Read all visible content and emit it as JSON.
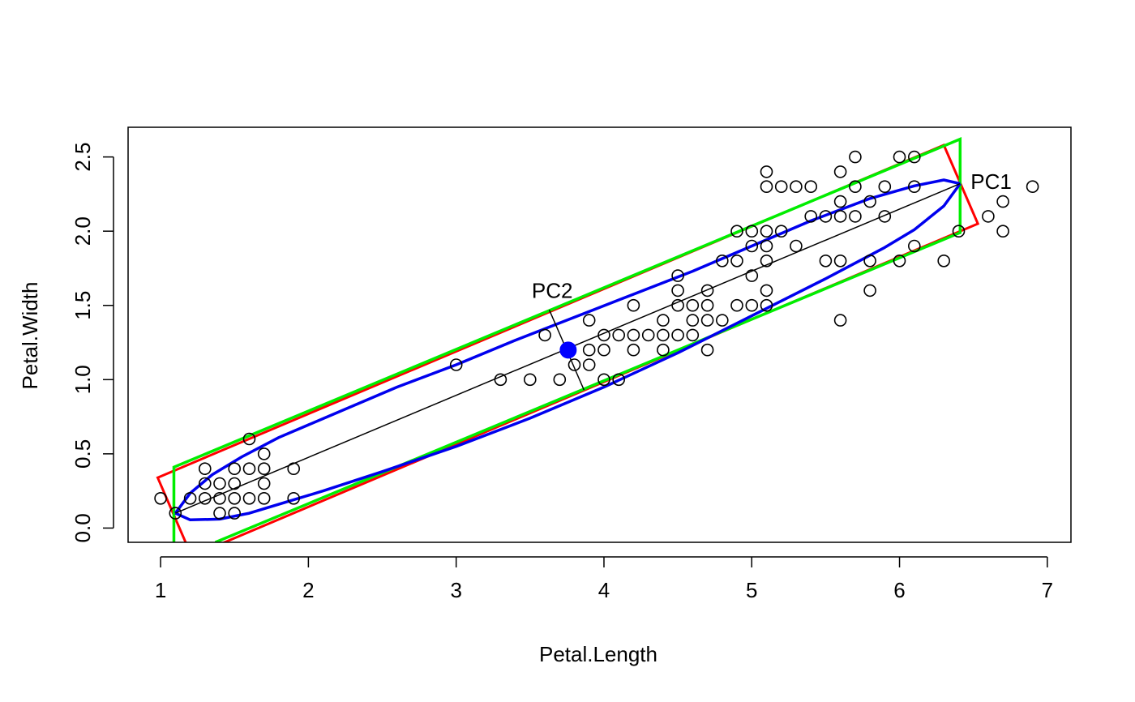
{
  "chart_data": {
    "type": "scatter",
    "xlabel": "Petal.Length",
    "ylabel": "Petal.Width",
    "xlim": [
      0.78,
      7.16
    ],
    "ylim": [
      -0.096,
      2.7
    ],
    "xticks": [
      1,
      2,
      3,
      4,
      5,
      6,
      7
    ],
    "yticks": [
      0.0,
      0.5,
      1.0,
      1.5,
      2.0,
      2.5
    ],
    "x_tick_labels": [
      "1",
      "2",
      "3",
      "4",
      "5",
      "6",
      "7"
    ],
    "y_tick_labels": [
      "0.0",
      "0.5",
      "1.0",
      "1.5",
      "2.0",
      "2.5"
    ],
    "grid": false,
    "points": [
      [
        1.0,
        0.2
      ],
      [
        1.1,
        0.1
      ],
      [
        1.2,
        0.2
      ],
      [
        1.3,
        0.2
      ],
      [
        1.3,
        0.3
      ],
      [
        1.3,
        0.4
      ],
      [
        1.4,
        0.1
      ],
      [
        1.4,
        0.2
      ],
      [
        1.4,
        0.3
      ],
      [
        1.5,
        0.1
      ],
      [
        1.5,
        0.2
      ],
      [
        1.5,
        0.3
      ],
      [
        1.5,
        0.4
      ],
      [
        1.6,
        0.2
      ],
      [
        1.6,
        0.4
      ],
      [
        1.6,
        0.6
      ],
      [
        1.7,
        0.2
      ],
      [
        1.7,
        0.3
      ],
      [
        1.7,
        0.4
      ],
      [
        1.7,
        0.5
      ],
      [
        1.9,
        0.2
      ],
      [
        1.9,
        0.4
      ],
      [
        3.0,
        1.1
      ],
      [
        3.3,
        1.0
      ],
      [
        3.5,
        1.0
      ],
      [
        3.6,
        1.3
      ],
      [
        3.7,
        1.0
      ],
      [
        3.8,
        1.1
      ],
      [
        3.9,
        1.1
      ],
      [
        3.9,
        1.2
      ],
      [
        3.9,
        1.4
      ],
      [
        4.0,
        1.0
      ],
      [
        4.0,
        1.2
      ],
      [
        4.0,
        1.3
      ],
      [
        4.1,
        1.0
      ],
      [
        4.1,
        1.3
      ],
      [
        4.2,
        1.2
      ],
      [
        4.2,
        1.3
      ],
      [
        4.2,
        1.5
      ],
      [
        4.3,
        1.3
      ],
      [
        4.4,
        1.2
      ],
      [
        4.4,
        1.3
      ],
      [
        4.4,
        1.4
      ],
      [
        4.5,
        1.3
      ],
      [
        4.5,
        1.5
      ],
      [
        4.5,
        1.6
      ],
      [
        4.5,
        1.7
      ],
      [
        4.6,
        1.3
      ],
      [
        4.6,
        1.4
      ],
      [
        4.6,
        1.5
      ],
      [
        4.7,
        1.2
      ],
      [
        4.7,
        1.4
      ],
      [
        4.7,
        1.5
      ],
      [
        4.7,
        1.6
      ],
      [
        4.8,
        1.4
      ],
      [
        4.8,
        1.8
      ],
      [
        4.9,
        1.5
      ],
      [
        4.9,
        1.8
      ],
      [
        4.9,
        2.0
      ],
      [
        5.0,
        1.5
      ],
      [
        5.0,
        1.7
      ],
      [
        5.0,
        1.9
      ],
      [
        5.0,
        2.0
      ],
      [
        5.1,
        1.5
      ],
      [
        5.1,
        1.6
      ],
      [
        5.1,
        1.8
      ],
      [
        5.1,
        1.9
      ],
      [
        5.1,
        2.0
      ],
      [
        5.1,
        2.3
      ],
      [
        5.1,
        2.4
      ],
      [
        5.2,
        2.0
      ],
      [
        5.2,
        2.3
      ],
      [
        5.3,
        1.9
      ],
      [
        5.3,
        2.3
      ],
      [
        5.4,
        2.1
      ],
      [
        5.4,
        2.3
      ],
      [
        5.5,
        1.8
      ],
      [
        5.5,
        2.1
      ],
      [
        5.6,
        1.4
      ],
      [
        5.6,
        1.8
      ],
      [
        5.6,
        2.1
      ],
      [
        5.6,
        2.2
      ],
      [
        5.6,
        2.4
      ],
      [
        5.7,
        2.1
      ],
      [
        5.7,
        2.3
      ],
      [
        5.7,
        2.5
      ],
      [
        5.8,
        1.6
      ],
      [
        5.8,
        1.8
      ],
      [
        5.8,
        2.2
      ],
      [
        5.9,
        2.1
      ],
      [
        5.9,
        2.3
      ],
      [
        6.0,
        1.8
      ],
      [
        6.0,
        2.5
      ],
      [
        6.1,
        1.9
      ],
      [
        6.1,
        2.3
      ],
      [
        6.1,
        2.5
      ],
      [
        6.3,
        1.8
      ],
      [
        6.4,
        2.0
      ],
      [
        6.6,
        2.1
      ],
      [
        6.7,
        2.0
      ],
      [
        6.7,
        2.2
      ],
      [
        6.9,
        2.3
      ]
    ],
    "center": [
      3.758,
      1.199
    ],
    "center_color": "#0000ff",
    "pc1_axis": [
      [
        1.1,
        0.1
      ],
      [
        6.41,
        2.32
      ]
    ],
    "pc2_axis": [
      [
        3.63,
        1.47
      ],
      [
        3.865,
        0.93
      ]
    ],
    "pc_labels": [
      {
        "text": "PC1",
        "x": 6.62,
        "y": 2.335
      },
      {
        "text": "PC2",
        "x": 3.65,
        "y": 1.6
      }
    ],
    "red_box": {
      "color": "#ff0000",
      "corners": [
        [
          0.98,
          0.34
        ],
        [
          6.3,
          2.58
        ],
        [
          6.53,
          2.05
        ],
        [
          1.21,
          -0.19
        ]
      ]
    },
    "green_box": {
      "color": "#00ee00",
      "corners": [
        [
          1.09,
          -0.096
        ],
        [
          1.09,
          0.41
        ],
        [
          6.41,
          2.62
        ],
        [
          6.41,
          1.99
        ],
        [
          1.37,
          -0.096
        ]
      ]
    },
    "ellipse": {
      "color": "#0000ee",
      "upper": [
        [
          1.1,
          0.1
        ],
        [
          1.2,
          0.235
        ],
        [
          1.35,
          0.36
        ],
        [
          1.55,
          0.48
        ],
        [
          1.8,
          0.61
        ],
        [
          2.2,
          0.78
        ],
        [
          2.6,
          0.95
        ],
        [
          3.0,
          1.1
        ],
        [
          3.4,
          1.265
        ],
        [
          3.8,
          1.42
        ],
        [
          4.2,
          1.575
        ],
        [
          4.6,
          1.73
        ],
        [
          5.0,
          1.9
        ],
        [
          5.4,
          2.07
        ],
        [
          5.8,
          2.22
        ],
        [
          6.1,
          2.305
        ],
        [
          6.3,
          2.345
        ],
        [
          6.41,
          2.32
        ]
      ],
      "lower": [
        [
          1.1,
          0.1
        ],
        [
          1.2,
          0.055
        ],
        [
          1.4,
          0.06
        ],
        [
          1.6,
          0.1
        ],
        [
          1.8,
          0.16
        ],
        [
          2.1,
          0.25
        ],
        [
          2.5,
          0.38
        ],
        [
          3.0,
          0.55
        ],
        [
          3.5,
          0.74
        ],
        [
          4.0,
          0.95
        ],
        [
          4.5,
          1.18
        ],
        [
          5.0,
          1.43
        ],
        [
          5.5,
          1.68
        ],
        [
          5.9,
          1.89
        ],
        [
          6.1,
          2.01
        ],
        [
          6.3,
          2.17
        ],
        [
          6.41,
          2.32
        ]
      ]
    }
  }
}
